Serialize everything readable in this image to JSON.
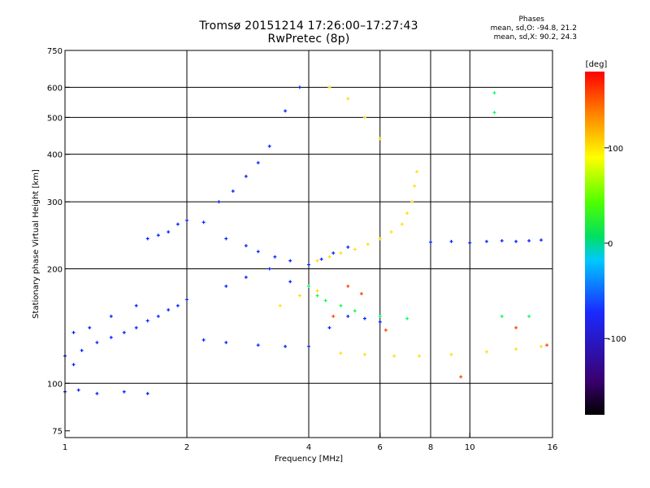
{
  "title": {
    "line1": "Tromsø 20151214 17:26:00–17:27:43",
    "line2": "RwPretec (8p)"
  },
  "phases": {
    "header": "Phases",
    "o_stats": "mean, sd,O: -94.8, 21.2",
    "x_stats": "mean, sd,X:  90.2, 24.3"
  },
  "chart_data": {
    "type": "scatter",
    "xlabel": "Frequency [MHz]",
    "ylabel": "Stationary phase Virtual Height [km]",
    "xscale": "log",
    "yscale": "log",
    "xlim": [
      1,
      16
    ],
    "ylim": [
      72,
      750
    ],
    "xticks": [
      1,
      2,
      4,
      6,
      8,
      10,
      16
    ],
    "xtick_labels": [
      "1",
      "2",
      "4",
      "6",
      "8",
      "10",
      "16"
    ],
    "x_gridlines": [
      2,
      4,
      6,
      8,
      10
    ],
    "yticks": [
      75,
      100,
      200,
      300,
      400,
      500,
      600,
      750
    ],
    "ytick_labels": [
      "75",
      "100",
      "200",
      "300",
      "400",
      "500",
      "600",
      "750"
    ],
    "y_gridlines": [
      100,
      200,
      300,
      400,
      500,
      600
    ],
    "grid": true,
    "colorbar": {
      "label": "[deg]",
      "range": [
        -180,
        180
      ],
      "ticks": [
        100,
        0,
        -100
      ],
      "tick_labels": [
        "100",
        "0",
        "-100"
      ]
    },
    "series": [
      {
        "color_deg": -130,
        "points": [
          [
            1.0,
            95
          ],
          [
            1.08,
            96
          ],
          [
            1.2,
            94
          ],
          [
            1.4,
            95
          ],
          [
            1.6,
            94
          ],
          [
            1.0,
            118
          ],
          [
            1.05,
            112
          ],
          [
            1.1,
            122
          ],
          [
            1.2,
            128
          ],
          [
            1.3,
            132
          ],
          [
            1.4,
            136
          ],
          [
            1.5,
            140
          ],
          [
            1.6,
            146
          ],
          [
            1.7,
            150
          ],
          [
            1.8,
            156
          ],
          [
            1.9,
            160
          ],
          [
            2.0,
            166
          ],
          [
            1.05,
            136
          ],
          [
            1.15,
            140
          ],
          [
            1.3,
            150
          ],
          [
            1.5,
            160
          ],
          [
            1.6,
            240
          ],
          [
            1.7,
            245
          ],
          [
            1.8,
            250
          ],
          [
            1.9,
            262
          ],
          [
            2.0,
            268
          ],
          [
            2.2,
            265
          ],
          [
            2.5,
            240
          ],
          [
            2.8,
            230
          ],
          [
            3.0,
            222
          ],
          [
            3.3,
            215
          ],
          [
            3.6,
            210
          ],
          [
            4.0,
            205
          ],
          [
            4.3,
            212
          ],
          [
            4.6,
            220
          ],
          [
            5.0,
            228
          ],
          [
            2.2,
            130
          ],
          [
            2.5,
            128
          ],
          [
            3.0,
            126
          ],
          [
            3.5,
            125
          ],
          [
            4.0,
            125
          ],
          [
            2.4,
            300
          ],
          [
            2.6,
            320
          ],
          [
            2.8,
            350
          ],
          [
            3.0,
            380
          ],
          [
            3.2,
            420
          ],
          [
            3.5,
            520
          ],
          [
            3.8,
            600
          ],
          [
            2.5,
            180
          ],
          [
            2.8,
            190
          ],
          [
            3.2,
            200
          ],
          [
            3.6,
            185
          ],
          [
            8.0,
            235
          ],
          [
            9.0,
            236
          ],
          [
            10.0,
            234
          ],
          [
            11.0,
            236
          ],
          [
            12.0,
            237
          ],
          [
            13.0,
            236
          ],
          [
            14.0,
            237
          ],
          [
            15.0,
            238
          ],
          [
            4.5,
            140
          ],
          [
            5.0,
            150
          ],
          [
            5.5,
            148
          ],
          [
            6.0,
            145
          ]
        ]
      },
      {
        "color_deg": -5,
        "points": [
          [
            4.0,
            180
          ],
          [
            4.2,
            170
          ],
          [
            4.4,
            165
          ],
          [
            4.8,
            160
          ],
          [
            5.2,
            155
          ],
          [
            6.0,
            150
          ],
          [
            7.0,
            148
          ],
          [
            12.0,
            150
          ],
          [
            14.0,
            150
          ],
          [
            11.5,
            580
          ],
          [
            11.5,
            515
          ]
        ]
      },
      {
        "color_deg": 110,
        "points": [
          [
            4.2,
            210
          ],
          [
            4.5,
            215
          ],
          [
            4.8,
            220
          ],
          [
            5.2,
            225
          ],
          [
            5.6,
            232
          ],
          [
            6.0,
            240
          ],
          [
            6.4,
            250
          ],
          [
            6.8,
            262
          ],
          [
            7.0,
            280
          ],
          [
            7.2,
            300
          ],
          [
            7.3,
            330
          ],
          [
            7.4,
            360
          ],
          [
            4.5,
            600
          ],
          [
            5.0,
            560
          ],
          [
            5.5,
            500
          ],
          [
            6.0,
            440
          ],
          [
            4.8,
            120
          ],
          [
            5.5,
            119
          ],
          [
            6.5,
            118
          ],
          [
            7.5,
            118
          ],
          [
            9.0,
            119
          ],
          [
            11.0,
            121
          ],
          [
            13.0,
            123
          ],
          [
            15.0,
            125
          ],
          [
            3.4,
            160
          ],
          [
            3.8,
            170
          ],
          [
            4.2,
            175
          ]
        ]
      },
      {
        "color_deg": 160,
        "points": [
          [
            4.6,
            150
          ],
          [
            5.0,
            180
          ],
          [
            5.4,
            172
          ],
          [
            6.2,
            138
          ],
          [
            9.5,
            104
          ],
          [
            13.0,
            140
          ],
          [
            15.5,
            126
          ]
        ]
      }
    ]
  }
}
